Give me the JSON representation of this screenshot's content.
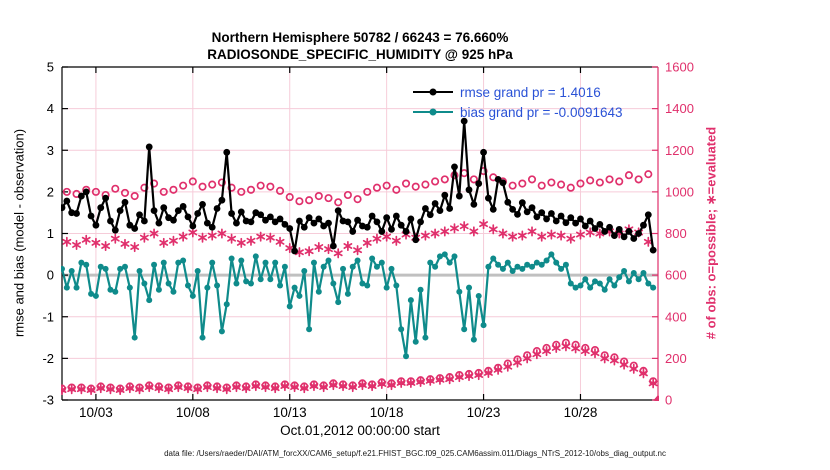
{
  "title_line1": "Northern Hemisphere 50782 / 66243 = 76.660%",
  "title_line2": "RADIOSONDE_SPECIFIC_HUMIDITY @ 925 hPa",
  "footer": "data file: /Users/raeder/DAI/ATM_forcXX/CAM6_setup/f.e21.FHIST_BGC.f09_025.CAM6assim.011/Diags_NTrS_2012-10/obs_diag_output.nc",
  "legend": [
    {
      "label": "rmse grand pr = 1.4016",
      "color": "#000000"
    },
    {
      "label": "bias grand pr = -0.0091643",
      "color": "#0f8b8b"
    }
  ],
  "colors": {
    "pink": "#e0306c",
    "grid_pink": "#f6ccd9",
    "zero_grey": "#c0c0c0",
    "teal": "#0f8b8b",
    "black": "#000000",
    "legend_blue": "#2a52d6"
  },
  "chart_data": {
    "type": "line",
    "title": "Northern Hemisphere 50782 / 66243 = 76.660% | RADIOSONDE_SPECIFIC_HUMIDITY @ 925 hPa",
    "xlabel": "Oct.01,2012 00:00:00 start",
    "ylabel_left": "rmse and bias (model - observation)",
    "ylabel_right": "# of obs: o=possible; ∗=evaluated",
    "grid": true,
    "legend_position": "top-right-inside",
    "ylim_left": [
      -3,
      5
    ],
    "ylim_right": [
      0,
      1600
    ],
    "yticks_left": [
      5,
      4,
      3,
      2,
      1,
      0,
      -1,
      -2,
      -3
    ],
    "yticks_right": [
      0,
      200,
      400,
      600,
      800,
      1000,
      1200,
      1400,
      1600
    ],
    "xlim_days": [
      1.25,
      32.0
    ],
    "xticks": [
      {
        "day": 3,
        "label": "10/03"
      },
      {
        "day": 8,
        "label": "10/08"
      },
      {
        "day": 13,
        "label": "10/13"
      },
      {
        "day": 18,
        "label": "10/18"
      },
      {
        "day": 23,
        "label": "10/23"
      },
      {
        "day": 28,
        "label": "10/28"
      }
    ],
    "time_start_day_october": 1.25,
    "time_step_days": 0.25,
    "series": [
      {
        "name": "possible_obs",
        "axis": "right",
        "marker": "circle",
        "line": false,
        "color": "#e0306c",
        "values": [
          55,
          1000,
          60,
          990,
          60,
          1010,
          55,
          1000,
          65,
          985,
          60,
          1015,
          55,
          995,
          65,
          980,
          60,
          1020,
          70,
          1040,
          65,
          1000,
          60,
          1010,
          70,
          1030,
          65,
          1050,
          60,
          1025,
          70,
          1035,
          65,
          1045,
          60,
          1020,
          70,
          1000,
          65,
          1010,
          75,
          1030,
          70,
          1025,
          65,
          1005,
          75,
          975,
          70,
          955,
          65,
          960,
          75,
          980,
          70,
          970,
          80,
          950,
          75,
          985,
          70,
          965,
          80,
          1000,
          75,
          1020,
          85,
          1030,
          80,
          1010,
          90,
          1040,
          90,
          1025,
          95,
          1035,
          100,
          1050,
          105,
          1060,
          110,
          1080,
          120,
          1090,
          125,
          1060,
          130,
          1100,
          140,
          1070,
          155,
          1050,
          175,
          1030,
          195,
          1040,
          215,
          1060,
          235,
          1030,
          250,
          1045,
          265,
          1035,
          275,
          1020,
          265,
          1040,
          250,
          1055,
          240,
          1045,
          215,
          1060,
          205,
          1050,
          185,
          1080,
          165,
          1060,
          140,
          1085,
          90,
          0
        ]
      },
      {
        "name": "evaluated_obs",
        "axis": "right",
        "marker": "asterisk",
        "line": false,
        "color": "#e0306c",
        "values": [
          48,
          760,
          52,
          745,
          52,
          770,
          48,
          755,
          57,
          740,
          52,
          775,
          48,
          750,
          57,
          735,
          52,
          780,
          62,
          800,
          57,
          755,
          52,
          765,
          62,
          785,
          57,
          805,
          52,
          780,
          62,
          790,
          57,
          800,
          52,
          775,
          62,
          755,
          57,
          765,
          67,
          785,
          62,
          780,
          57,
          760,
          67,
          730,
          62,
          710,
          57,
          715,
          67,
          735,
          62,
          725,
          72,
          705,
          67,
          740,
          62,
          720,
          72,
          755,
          67,
          775,
          77,
          785,
          72,
          765,
          82,
          795,
          82,
          780,
          87,
          790,
          92,
          800,
          97,
          810,
          100,
          825,
          110,
          835,
          115,
          810,
          120,
          845,
          130,
          820,
          145,
          800,
          160,
          785,
          180,
          790,
          200,
          810,
          220,
          785,
          235,
          795,
          250,
          790,
          258,
          775,
          248,
          795,
          235,
          805,
          225,
          800,
          200,
          810,
          190,
          800,
          170,
          820,
          150,
          805,
          128,
          760,
          80,
          0
        ]
      },
      {
        "name": "bias",
        "axis": "left",
        "marker": "dot",
        "line": true,
        "color": "#0f8b8b",
        "grand_mean": -0.0091643,
        "values": [
          0.15,
          -0.3,
          0.1,
          -0.3,
          0.3,
          0.25,
          -0.45,
          -0.5,
          0.2,
          0.15,
          -0.35,
          -0.4,
          0.15,
          0.2,
          -0.3,
          -1.5,
          0.1,
          -0.2,
          -0.6,
          0.25,
          -0.35,
          0.3,
          -0.2,
          -0.4,
          0.3,
          0.35,
          -0.25,
          -0.5,
          0.1,
          -1.5,
          -0.3,
          0.3,
          -0.25,
          -1.35,
          -0.7,
          0.4,
          -0.2,
          0.35,
          -0.15,
          -0.2,
          0.45,
          -0.1,
          0.3,
          -0.1,
          0.3,
          -0.25,
          0.2,
          -0.75,
          -0.3,
          -0.5,
          0.1,
          -1.3,
          0.3,
          -0.4,
          0.2,
          0.35,
          -0.2,
          -0.65,
          0.15,
          -0.45,
          0.2,
          0.35,
          -0.2,
          -0.25,
          0.4,
          0.2,
          0.3,
          -0.3,
          0.15,
          -0.25,
          -1.3,
          -1.95,
          -0.6,
          -1.6,
          -0.35,
          -1.5,
          0.3,
          0.2,
          0.45,
          0.5,
          0.3,
          0.45,
          -0.4,
          -1.3,
          -0.3,
          -1.55,
          -0.5,
          -1.2,
          0.2,
          0.4,
          0.25,
          0.15,
          0.3,
          0.1,
          0.2,
          0.15,
          0.25,
          0.2,
          0.3,
          0.25,
          0.35,
          0.5,
          0.3,
          0.15,
          0.25,
          -0.2,
          -0.3,
          -0.25,
          -0.1,
          -0.3,
          -0.15,
          -0.2,
          -0.35,
          -0.1,
          -0.25,
          -0.05,
          0.1,
          -0.15,
          0.05,
          -0.1,
          0.05,
          -0.2,
          -0.3,
          null
        ]
      },
      {
        "name": "rmse",
        "axis": "left",
        "marker": "dot",
        "line": true,
        "color": "#000000",
        "grand_mean": 1.4016,
        "values": [
          1.62,
          1.78,
          1.5,
          1.48,
          1.9,
          2.0,
          1.42,
          1.2,
          1.62,
          1.85,
          1.3,
          1.08,
          1.55,
          1.75,
          1.2,
          1.12,
          1.45,
          1.3,
          3.08,
          1.55,
          1.25,
          1.62,
          1.38,
          1.32,
          1.55,
          1.65,
          1.4,
          1.18,
          1.48,
          1.7,
          1.25,
          1.15,
          1.6,
          1.8,
          2.95,
          1.48,
          1.25,
          1.52,
          1.3,
          1.28,
          1.5,
          1.45,
          1.32,
          1.4,
          1.28,
          1.35,
          1.22,
          1.12,
          0.58,
          1.3,
          1.15,
          1.38,
          1.25,
          1.35,
          1.18,
          1.25,
          0.7,
          1.55,
          1.3,
          1.28,
          1.05,
          1.32,
          1.18,
          1.15,
          1.42,
          1.28,
          1.05,
          1.38,
          1.1,
          1.42,
          1.2,
          1.05,
          1.35,
          0.85,
          1.28,
          1.6,
          1.45,
          1.72,
          1.55,
          1.92,
          1.6,
          2.6,
          1.9,
          3.7,
          2.05,
          1.7,
          2.2,
          2.95,
          1.85,
          1.58,
          2.3,
          2.22,
          1.75,
          1.58,
          1.46,
          1.74,
          1.52,
          1.62,
          1.4,
          1.5,
          1.35,
          1.48,
          1.3,
          1.42,
          1.26,
          1.38,
          1.25,
          1.35,
          1.18,
          1.3,
          1.12,
          1.22,
          1.05,
          1.15,
          0.95,
          1.1,
          0.92,
          1.05,
          0.88,
          1.0,
          1.2,
          1.45,
          0.6,
          null
        ]
      }
    ]
  }
}
